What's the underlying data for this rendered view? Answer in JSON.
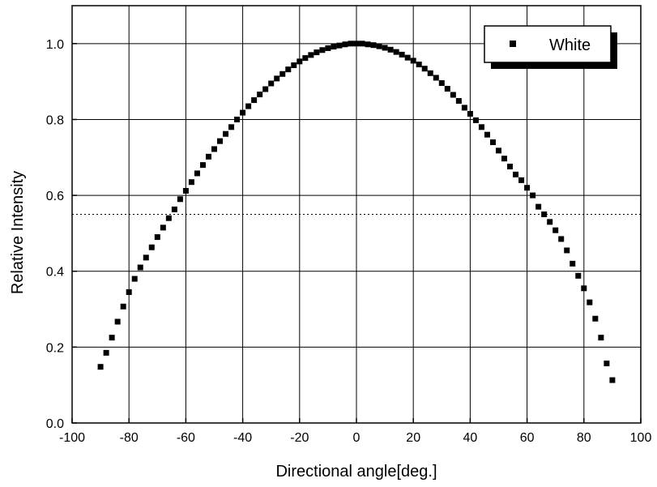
{
  "chart_data": {
    "type": "scatter",
    "title": "",
    "xlabel": "Directional angle[deg.]",
    "ylabel": "Relative Intensity",
    "xlim": [
      -100,
      100
    ],
    "ylim": [
      0.0,
      1.1
    ],
    "x_ticks": [
      "-100",
      "-80",
      "-60",
      "-40",
      "-20",
      "0",
      "20",
      "40",
      "60",
      "80",
      "100"
    ],
    "y_ticks": [
      "0.0",
      "0.2",
      "0.4",
      "0.6",
      "0.8",
      "1.0"
    ],
    "grid": true,
    "reference_line": {
      "y": 0.55,
      "style": "dotted"
    },
    "legend": {
      "position": "top-right",
      "entries": [
        "White"
      ]
    },
    "colors": {
      "series": "#000000",
      "grid": "#000000"
    },
    "series": [
      {
        "name": "White",
        "marker": "square",
        "points": [
          [
            -90,
            0.148
          ],
          [
            -88,
            0.185
          ],
          [
            -86,
            0.225
          ],
          [
            -84,
            0.267
          ],
          [
            -82,
            0.307
          ],
          [
            -80,
            0.345
          ],
          [
            -78,
            0.38
          ],
          [
            -76,
            0.41
          ],
          [
            -74,
            0.436
          ],
          [
            -72,
            0.463
          ],
          [
            -70,
            0.49
          ],
          [
            -68,
            0.515
          ],
          [
            -66,
            0.54
          ],
          [
            -64,
            0.563
          ],
          [
            -62,
            0.59
          ],
          [
            -60,
            0.612
          ],
          [
            -58,
            0.635
          ],
          [
            -56,
            0.658
          ],
          [
            -54,
            0.68
          ],
          [
            -52,
            0.702
          ],
          [
            -50,
            0.722
          ],
          [
            -48,
            0.743
          ],
          [
            -46,
            0.762
          ],
          [
            -44,
            0.78
          ],
          [
            -42,
            0.8
          ],
          [
            -40,
            0.818
          ],
          [
            -38,
            0.835
          ],
          [
            -36,
            0.851
          ],
          [
            -34,
            0.866
          ],
          [
            -32,
            0.88
          ],
          [
            -30,
            0.895
          ],
          [
            -28,
            0.908
          ],
          [
            -26,
            0.92
          ],
          [
            -24,
            0.932
          ],
          [
            -22,
            0.943
          ],
          [
            -20,
            0.953
          ],
          [
            -18,
            0.962
          ],
          [
            -16,
            0.97
          ],
          [
            -14,
            0.977
          ],
          [
            -12,
            0.983
          ],
          [
            -10,
            0.988
          ],
          [
            -8,
            0.992
          ],
          [
            -6,
            0.995
          ],
          [
            -4,
            0.998
          ],
          [
            -2,
            1.0
          ],
          [
            0,
            1.0
          ],
          [
            2,
            1.0
          ],
          [
            4,
            0.998
          ],
          [
            6,
            0.996
          ],
          [
            8,
            0.993
          ],
          [
            10,
            0.989
          ],
          [
            12,
            0.984
          ],
          [
            14,
            0.978
          ],
          [
            16,
            0.971
          ],
          [
            18,
            0.963
          ],
          [
            20,
            0.955
          ],
          [
            22,
            0.945
          ],
          [
            24,
            0.934
          ],
          [
            26,
            0.922
          ],
          [
            28,
            0.91
          ],
          [
            30,
            0.896
          ],
          [
            32,
            0.881
          ],
          [
            34,
            0.865
          ],
          [
            36,
            0.849
          ],
          [
            38,
            0.831
          ],
          [
            40,
            0.815
          ],
          [
            42,
            0.798
          ],
          [
            44,
            0.78
          ],
          [
            46,
            0.76
          ],
          [
            48,
            0.74
          ],
          [
            50,
            0.718
          ],
          [
            52,
            0.697
          ],
          [
            54,
            0.676
          ],
          [
            56,
            0.655
          ],
          [
            58,
            0.64
          ],
          [
            60,
            0.62
          ],
          [
            62,
            0.6
          ],
          [
            64,
            0.57
          ],
          [
            66,
            0.55
          ],
          [
            68,
            0.53
          ],
          [
            70,
            0.508
          ],
          [
            72,
            0.485
          ],
          [
            74,
            0.455
          ],
          [
            76,
            0.42
          ],
          [
            78,
            0.388
          ],
          [
            80,
            0.355
          ],
          [
            82,
            0.318
          ],
          [
            84,
            0.275
          ],
          [
            86,
            0.225
          ],
          [
            88,
            0.157
          ],
          [
            90,
            0.113
          ]
        ]
      }
    ]
  }
}
